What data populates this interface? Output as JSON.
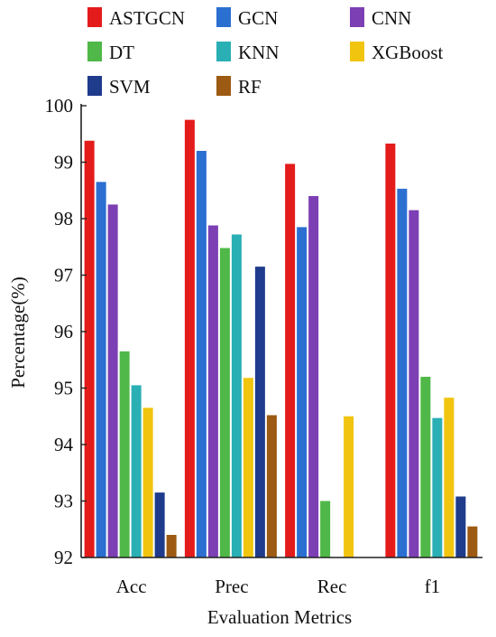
{
  "chart_data": {
    "type": "bar",
    "title": "",
    "xlabel": "Evaluation Metrics",
    "ylabel": "Percentage(%)",
    "ylim": [
      92,
      100
    ],
    "yticks": [
      "92",
      "93",
      "94",
      "95",
      "96",
      "97",
      "98",
      "99",
      "100"
    ],
    "categories": [
      "Acc",
      "Prec",
      "Rec",
      "f1"
    ],
    "legend_position": "top",
    "series": [
      {
        "name": "ASTGCN",
        "color": "#e41b1b",
        "values": [
          99.38,
          99.75,
          98.97,
          99.33
        ]
      },
      {
        "name": "GCN",
        "color": "#2b6fd1",
        "values": [
          98.65,
          99.2,
          97.85,
          98.53
        ]
      },
      {
        "name": "CNN",
        "color": "#7c3fb4",
        "values": [
          98.25,
          97.88,
          98.4,
          98.15
        ]
      },
      {
        "name": "DT",
        "color": "#4fb848",
        "values": [
          95.65,
          97.48,
          93.0,
          95.2
        ]
      },
      {
        "name": "KNN",
        "color": "#2aafb5",
        "values": [
          95.05,
          97.72,
          null,
          94.47
        ]
      },
      {
        "name": "XGBoost",
        "color": "#f1c40f",
        "values": [
          94.65,
          95.18,
          94.5,
          94.83
        ]
      },
      {
        "name": "SVM",
        "color": "#1f3b8c",
        "values": [
          93.15,
          97.15,
          null,
          93.08
        ]
      },
      {
        "name": "RF",
        "color": "#9c5a12",
        "values": [
          92.4,
          94.52,
          null,
          92.55
        ]
      }
    ]
  }
}
